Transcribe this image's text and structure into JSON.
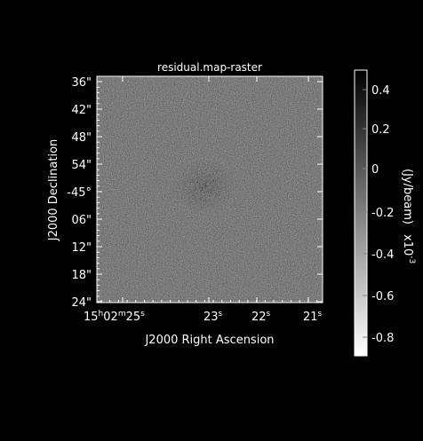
{
  "title": "residual.map-raster",
  "x_axis": {
    "label": "J2000 Right Ascension",
    "ticks": [
      {
        "main": "15",
        "sup1": "h",
        "mid": "02",
        "sup2": "m",
        "end": "25",
        "sup3": "s"
      },
      {
        "main": "23",
        "sup1": "s"
      },
      {
        "main": "22",
        "sup1": "s"
      },
      {
        "main": "21",
        "sup1": "s"
      }
    ]
  },
  "y_axis": {
    "label": "J2000 Declination",
    "ticks": [
      "36\"",
      "42\"",
      "48\"",
      "54\"",
      "-45°",
      "06\"",
      "12\"",
      "18\"",
      "24\""
    ]
  },
  "colorbar": {
    "label": "(Jy/beam)",
    "scale_label": "x10",
    "scale_exponent": "-3",
    "ticks": [
      "0.4",
      "0.2",
      "0",
      "-0.2",
      "-0.4",
      "-0.6",
      "-0.8"
    ],
    "colors": {
      "high": "#000000",
      "low": "#ffffff"
    }
  },
  "colors": {
    "background": "#000000",
    "axes": "#ffffff",
    "text": "#ffffff"
  }
}
